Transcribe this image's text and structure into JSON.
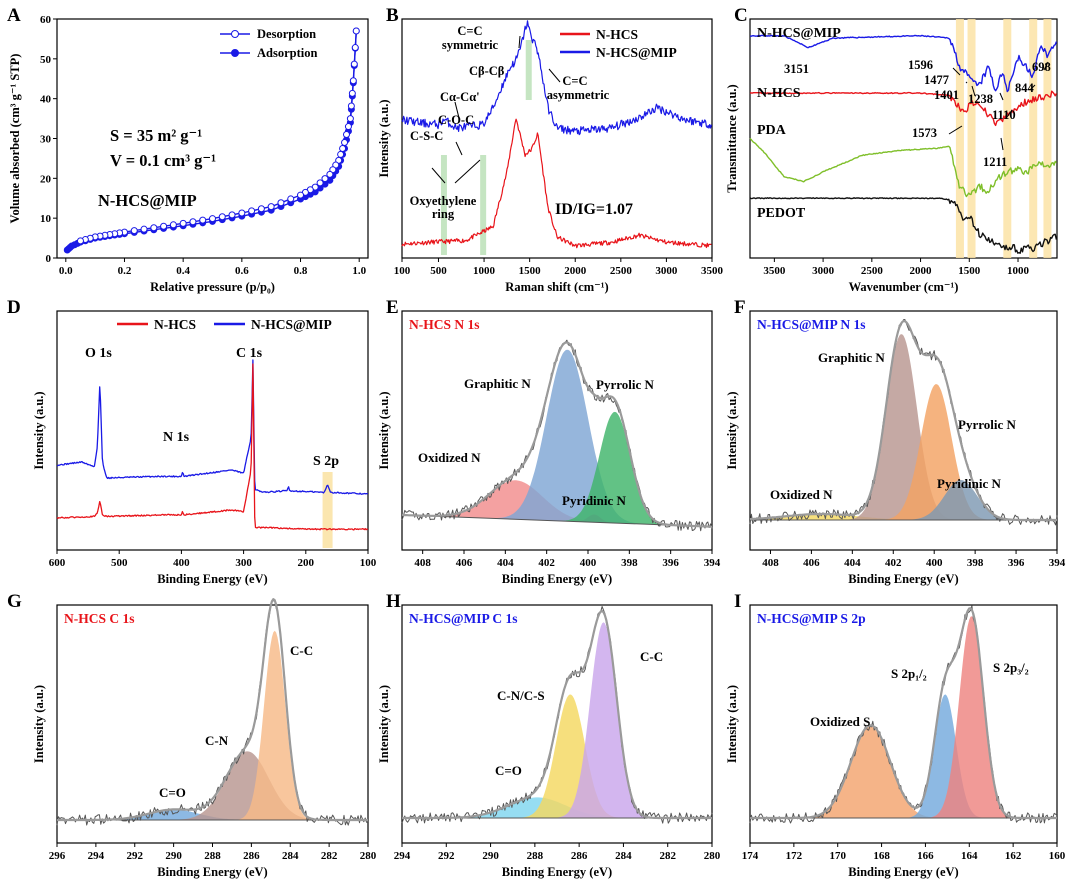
{
  "colors": {
    "red": "#e8141a",
    "blue": "#1a1ae6",
    "green": "#7fbf2a",
    "black": "#111111",
    "band": "#fbe3a6",
    "grey_line": "#555555",
    "fill_red": "#f28c8c",
    "fill_blue": "#7fa6d4",
    "fill_green": "#3fb56a",
    "fill_purple": "#a46cd0",
    "fill_brown": "#b89690",
    "fill_orange": "#f3a263",
    "fill_yellow": "#f4d860",
    "fill_cyan": "#7fd6ef",
    "fill_lilac": "#c9a6ec",
    "fill_peach": "#f6b987",
    "fill_steel": "#7e98b2",
    "fill_pink": "#ee8480",
    "fill_sky": "#74a9dd",
    "fill_apricot": "#f3a36e"
  },
  "chart_data": [
    {
      "panel": "A",
      "type": "line",
      "xlabel": "Relative pressure (p/p₀)",
      "ylabel": "Volume absorbed (cm³ g⁻¹ STP)",
      "xlim": [
        -0.03,
        1.03
      ],
      "ylim": [
        0,
        60
      ],
      "xticks": [
        "0.0",
        "0.2",
        "0.4",
        "0.6",
        "0.8",
        "1.0"
      ],
      "yticks": [
        "0",
        "10",
        "20",
        "30",
        "40",
        "50",
        "60"
      ],
      "legend": [
        "Desorption",
        "Adsorption"
      ],
      "annotations": [
        "S = 35 m² g⁻¹",
        "V = 0.1 cm³ g⁻¹",
        "N-HCS@MIP"
      ],
      "series": [
        {
          "name": "Adsorption",
          "x": [
            0.005,
            0.02,
            0.05,
            0.1,
            0.15,
            0.2,
            0.3,
            0.4,
            0.5,
            0.6,
            0.7,
            0.8,
            0.85,
            0.9,
            0.93,
            0.95,
            0.97,
            0.98,
            0.99
          ],
          "y": [
            2.0,
            3.0,
            4.0,
            5.0,
            5.6,
            6.1,
            7.1,
            8.1,
            9.2,
            10.5,
            12.0,
            14.8,
            16.6,
            19.5,
            23.0,
            27.5,
            34.0,
            44.0,
            57.0
          ]
        },
        {
          "name": "Desorption",
          "x": [
            0.99,
            0.98,
            0.97,
            0.95,
            0.93,
            0.9,
            0.85,
            0.8,
            0.7,
            0.6,
            0.5,
            0.4,
            0.3,
            0.2,
            0.15,
            0.1,
            0.05
          ],
          "y": [
            57.0,
            44.5,
            35.0,
            29.0,
            24.5,
            21.0,
            17.8,
            15.8,
            12.9,
            11.3,
            9.9,
            8.7,
            7.6,
            6.5,
            5.9,
            5.3,
            4.3
          ]
        }
      ]
    },
    {
      "panel": "B",
      "type": "line",
      "xlabel": "Raman shift (cm⁻¹)",
      "ylabel": "Intensity (a.u.)",
      "xlim": [
        100,
        3500
      ],
      "xticks": [
        "100",
        "500",
        "1000",
        "1500",
        "2000",
        "2500",
        "3000",
        "3500"
      ],
      "legend": [
        "N-HCS",
        "N-HCS@MIP"
      ],
      "annotations": [
        "C=C",
        "symmetric",
        "Cβ-Cβ",
        "Cα-Cα'",
        "C-O-C",
        "C-S-C",
        "C=C",
        "asymmetric",
        "Oxyethylene",
        "ring",
        "ID/IG=1.07"
      ],
      "series": [
        {
          "name": "N-HCS",
          "x": [
            100,
            400,
            800,
            1100,
            1250,
            1350,
            1450,
            1520,
            1590,
            1700,
            1800,
            2000,
            2400,
            2700,
            3000,
            3500
          ],
          "y": [
            0.04,
            0.05,
            0.06,
            0.14,
            0.45,
            0.76,
            0.55,
            0.58,
            0.67,
            0.25,
            0.08,
            0.03,
            0.05,
            0.09,
            0.05,
            0.03
          ]
        },
        {
          "name": "N-HCS@MIP",
          "x": [
            100,
            300,
            500,
            560,
            700,
            990,
            1100,
            1200,
            1280,
            1350,
            1400,
            1460,
            1490,
            1520,
            1570,
            1620,
            1700,
            1800,
            2000,
            2400,
            2700,
            2900,
            3200,
            3500
          ],
          "y": [
            0.55,
            0.53,
            0.52,
            0.55,
            0.5,
            0.52,
            0.62,
            0.75,
            0.85,
            0.9,
            0.97,
            1.1,
            1.12,
            1.01,
            1.0,
            0.86,
            0.62,
            0.5,
            0.48,
            0.5,
            0.56,
            0.62,
            0.55,
            0.52
          ]
        }
      ]
    },
    {
      "panel": "C",
      "type": "line",
      "xlabel": "Wavenumber (cm⁻¹)",
      "ylabel": "Transmittance (a.u.)",
      "xlim": [
        3750,
        600
      ],
      "xticks": [
        "3500",
        "3000",
        "2500",
        "2000",
        "1500",
        "1000"
      ],
      "bands": [
        1596,
        1477,
        1110,
        844,
        698
      ],
      "annotations": [
        "N-HCS@MIP",
        "3151",
        "1596",
        "1477",
        "1401",
        "1238",
        "844",
        "698",
        "1110",
        "N-HCS",
        "1573",
        "1211",
        "PDA",
        "PEDOT"
      ],
      "series": [
        {
          "name": "N-HCS@MIP",
          "x": [
            3750,
            3400,
            3151,
            2900,
            2000,
            1700,
            1596,
            1477,
            1401,
            1300,
            1238,
            1150,
            1110,
            1000,
            844,
            760,
            698,
            600
          ],
          "y": [
            0.93,
            0.93,
            0.88,
            0.92,
            0.93,
            0.92,
            0.8,
            0.74,
            0.72,
            0.8,
            0.7,
            0.78,
            0.7,
            0.84,
            0.76,
            0.9,
            0.84,
            0.92
          ]
        },
        {
          "name": "N-HCS",
          "x": [
            3750,
            2000,
            1700,
            1573,
            1450,
            1300,
            1211,
            1100,
            900,
            700,
            600
          ],
          "y": [
            0.69,
            0.69,
            0.68,
            0.61,
            0.65,
            0.6,
            0.56,
            0.6,
            0.66,
            0.68,
            0.69
          ]
        },
        {
          "name": "PDA",
          "x": [
            3750,
            3600,
            3400,
            3200,
            3000,
            2600,
            2200,
            1800,
            1700,
            1600,
            1500,
            1400,
            1300,
            1200,
            1100,
            1000,
            900,
            800,
            700,
            600
          ],
          "y": [
            0.5,
            0.44,
            0.34,
            0.32,
            0.36,
            0.43,
            0.45,
            0.46,
            0.47,
            0.3,
            0.26,
            0.3,
            0.28,
            0.34,
            0.36,
            0.37,
            0.36,
            0.4,
            0.38,
            0.4
          ]
        },
        {
          "name": "PEDOT",
          "x": [
            3750,
            2000,
            1800,
            1650,
            1550,
            1500,
            1400,
            1300,
            1200,
            1100,
            1050,
            1000,
            900,
            850,
            700,
            600
          ],
          "y": [
            0.25,
            0.25,
            0.25,
            0.24,
            0.16,
            0.18,
            0.1,
            0.08,
            0.05,
            0.04,
            0.06,
            0.02,
            0.06,
            0.04,
            0.07,
            0.09
          ]
        }
      ]
    },
    {
      "panel": "D",
      "type": "line",
      "xlabel": "Binding Energy (eV)",
      "ylabel": "Intensity (a.u.)",
      "xlim": [
        600,
        100
      ],
      "xticks": [
        "600",
        "500",
        "400",
        "300",
        "200",
        "100"
      ],
      "legend": [
        "N-HCS",
        "N-HCS@MIP"
      ],
      "annotations": [
        "O 1s",
        "N 1s",
        "C 1s",
        "S 2p"
      ],
      "series": [
        {
          "name": "N-HCS@MIP",
          "x": [
            600,
            560,
            540,
            535,
            531,
            527,
            520,
            440,
            400,
            398,
            396,
            320,
            300,
            288,
            285,
            282,
            270,
            230,
            228,
            226,
            170,
            165,
            160,
            100
          ],
          "y": [
            0.33,
            0.35,
            0.32,
            0.45,
            0.86,
            0.35,
            0.25,
            0.26,
            0.26,
            0.29,
            0.26,
            0.3,
            0.28,
            0.5,
            0.99,
            0.18,
            0.16,
            0.17,
            0.2,
            0.17,
            0.16,
            0.21,
            0.16,
            0.15
          ]
        },
        {
          "name": "N-HCS",
          "x": [
            600,
            540,
            535,
            531,
            527,
            520,
            420,
            400,
            398,
            396,
            320,
            300,
            288,
            285,
            282,
            260,
            200,
            100
          ],
          "y": [
            0.0,
            0.01,
            0.03,
            0.11,
            0.02,
            0.01,
            0.02,
            0.02,
            0.04,
            0.02,
            0.05,
            0.04,
            0.3,
            0.96,
            -0.06,
            -0.06,
            -0.07,
            -0.07
          ]
        }
      ]
    },
    {
      "panel": "E",
      "type": "area",
      "title": "N-HCS  N 1s",
      "xlabel": "Binding Energy (eV)",
      "ylabel": "Intensity (a.u.)",
      "xlim": [
        409,
        394
      ],
      "xticks": [
        "408",
        "406",
        "404",
        "402",
        "400",
        "398",
        "396",
        "394"
      ],
      "baseline": {
        "x": [
          409,
          394
        ],
        "y": [
          0.0,
          -0.06
        ]
      },
      "peaks": [
        {
          "name": "Oxidized N",
          "center": 403.5,
          "height": 0.2,
          "sigma": 1.3
        },
        {
          "name": "Graphitic N",
          "center": 401.0,
          "height": 0.88,
          "sigma": 1.0
        },
        {
          "name": "Pyrrolic N",
          "center": 399.7,
          "height": 0.04,
          "sigma": 0.3
        },
        {
          "name": "Pyridinic N",
          "center": 398.7,
          "height": 0.57,
          "sigma": 0.75
        }
      ]
    },
    {
      "panel": "F",
      "type": "area",
      "title": "N-HCS@MIP  N 1s",
      "xlabel": "Binding Energy (eV)",
      "ylabel": "Intensity (a.u.)",
      "xlim": [
        409,
        394
      ],
      "xticks": [
        "408",
        "406",
        "404",
        "402",
        "400",
        "398",
        "396",
        "394"
      ],
      "baseline": {
        "x": [
          409,
          394
        ],
        "y": [
          0.0,
          0.0
        ]
      },
      "peaks": [
        {
          "name": "Oxidized N",
          "center": 405.5,
          "height": 0.03,
          "sigma": 1.8
        },
        {
          "name": "Graphitic N",
          "center": 401.6,
          "height": 0.93,
          "sigma": 0.75
        },
        {
          "name": "Pyrrolic N",
          "center": 399.9,
          "height": 0.68,
          "sigma": 0.75
        },
        {
          "name": "Pyridinic N",
          "center": 398.7,
          "height": 0.2,
          "sigma": 0.8
        }
      ]
    },
    {
      "panel": "G",
      "type": "area",
      "title": "N-HCS  C 1s",
      "xlabel": "Binding Energy (eV)",
      "ylabel": "Intensity (a.u.)",
      "xlim": [
        296,
        280
      ],
      "xticks": [
        "296",
        "294",
        "292",
        "290",
        "288",
        "286",
        "284",
        "282",
        "280"
      ],
      "baseline": {
        "x": [
          296,
          280
        ],
        "y": [
          0.0,
          0.0
        ]
      },
      "peaks": [
        {
          "name": "C=O",
          "center": 290.0,
          "height": 0.05,
          "sigma": 1.3
        },
        {
          "name": "C-N",
          "center": 286.2,
          "height": 0.33,
          "sigma": 1.1
        },
        {
          "name": "C-C",
          "center": 284.8,
          "height": 0.91,
          "sigma": 0.55
        }
      ]
    },
    {
      "panel": "H",
      "type": "area",
      "title": "N-HCS@MIP  C 1s",
      "xlabel": "Binding Energy (eV)",
      "ylabel": "Intensity (a.u.)",
      "xlim": [
        294,
        280
      ],
      "xticks": [
        "294",
        "292",
        "290",
        "288",
        "286",
        "284",
        "282",
        "280"
      ],
      "baseline": {
        "x": [
          294,
          280
        ],
        "y": [
          0.0,
          0.0
        ]
      },
      "peaks": [
        {
          "name": "C=O",
          "center": 287.9,
          "height": 0.1,
          "sigma": 1.3
        },
        {
          "name": "C-N/C-S",
          "center": 286.4,
          "height": 0.6,
          "sigma": 0.65
        },
        {
          "name": "C-C",
          "center": 284.9,
          "height": 0.95,
          "sigma": 0.6
        }
      ]
    },
    {
      "panel": "I",
      "type": "area",
      "title": "N-HCS@MIP  S 2p",
      "xlabel": "Binding Energy (eV)",
      "ylabel": "Intensity (a.u.)",
      "xlim": [
        174,
        160
      ],
      "xticks": [
        "174",
        "172",
        "170",
        "168",
        "166",
        "164",
        "162",
        "160"
      ],
      "baseline": {
        "x": [
          174,
          160
        ],
        "y": [
          0.0,
          0.0
        ]
      },
      "peaks": [
        {
          "name": "Oxidized S",
          "center": 168.5,
          "height": 0.45,
          "sigma": 0.9
        },
        {
          "name": "S 2p₁/₂",
          "center": 165.1,
          "height": 0.6,
          "sigma": 0.5
        },
        {
          "name": "S 2p₃/₂",
          "center": 163.9,
          "height": 0.98,
          "sigma": 0.55
        }
      ]
    }
  ]
}
